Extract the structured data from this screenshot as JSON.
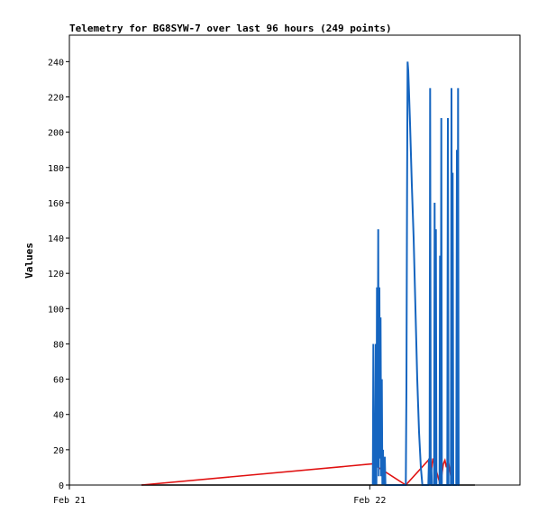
{
  "chart_data": {
    "type": "line",
    "title": "Telemetry for BG8SYW-7 over last 96 hours (249 points)",
    "xlabel": "",
    "ylabel": "Values",
    "ylim": [
      0,
      255
    ],
    "xlim": [
      0,
      1.5
    ],
    "x_ticks": [
      {
        "label": "Feb 21",
        "x": 0
      },
      {
        "label": "Feb 22",
        "x": 1
      }
    ],
    "y_ticks": [
      0,
      20,
      40,
      60,
      80,
      100,
      120,
      140,
      160,
      180,
      200,
      220,
      240
    ],
    "grid": false,
    "legend": "none",
    "colors": {
      "frame": "#000000",
      "background": "#ffffff"
    },
    "series": [
      {
        "color": "#000000",
        "points": [
          [
            0.24,
            0
          ],
          [
            1.35,
            0
          ]
        ]
      },
      {
        "color": "#e01010",
        "points": [
          [
            0.24,
            0
          ],
          [
            1.01,
            12
          ],
          [
            1.12,
            0
          ],
          [
            1.2,
            15
          ],
          [
            1.205,
            8
          ],
          [
            1.21,
            15
          ],
          [
            1.215,
            12
          ],
          [
            1.225,
            6
          ],
          [
            1.235,
            0
          ],
          [
            1.245,
            12
          ],
          [
            1.25,
            14
          ],
          [
            1.255,
            10
          ],
          [
            1.26,
            15
          ],
          [
            1.27,
            5
          ],
          [
            1.275,
            0
          ]
        ]
      },
      {
        "color": "#1565c0",
        "points": [
          [
            1.01,
            0
          ],
          [
            1.012,
            80
          ],
          [
            1.014,
            0
          ],
          [
            1.016,
            40
          ],
          [
            1.018,
            0
          ],
          [
            1.02,
            80
          ],
          [
            1.022,
            0
          ],
          [
            1.024,
            112
          ],
          [
            1.026,
            10
          ],
          [
            1.028,
            145
          ],
          [
            1.03,
            5
          ],
          [
            1.032,
            112
          ],
          [
            1.034,
            15
          ],
          [
            1.036,
            95
          ],
          [
            1.038,
            5
          ],
          [
            1.04,
            60
          ],
          [
            1.042,
            0
          ],
          [
            1.044,
            20
          ],
          [
            1.046,
            0
          ],
          [
            1.048,
            10
          ],
          [
            1.05,
            16
          ],
          [
            1.052,
            0
          ],
          [
            1.12,
            0
          ],
          [
            1.122,
            55
          ],
          [
            1.124,
            165
          ],
          [
            1.126,
            240
          ],
          [
            1.128,
            235
          ],
          [
            1.13,
            225
          ],
          [
            1.134,
            205
          ],
          [
            1.14,
            170
          ],
          [
            1.146,
            140
          ],
          [
            1.152,
            100
          ],
          [
            1.158,
            60
          ],
          [
            1.164,
            30
          ],
          [
            1.17,
            10
          ],
          [
            1.175,
            0
          ],
          [
            1.195,
            0
          ],
          [
            1.197,
            15
          ],
          [
            1.199,
            0
          ],
          [
            1.201,
            225
          ],
          [
            1.203,
            0
          ],
          [
            1.205,
            10
          ],
          [
            1.207,
            0
          ],
          [
            1.214,
            0
          ],
          [
            1.216,
            160
          ],
          [
            1.218,
            0
          ],
          [
            1.22,
            145
          ],
          [
            1.222,
            0
          ],
          [
            1.232,
            0
          ],
          [
            1.234,
            130
          ],
          [
            1.236,
            0
          ],
          [
            1.238,
            208
          ],
          [
            1.24,
            0
          ],
          [
            1.258,
            0
          ],
          [
            1.26,
            208
          ],
          [
            1.262,
            0
          ],
          [
            1.27,
            0
          ],
          [
            1.272,
            225
          ],
          [
            1.274,
            0
          ],
          [
            1.276,
            177
          ],
          [
            1.278,
            0
          ],
          [
            1.288,
            0
          ],
          [
            1.29,
            190
          ],
          [
            1.292,
            0
          ],
          [
            1.294,
            225
          ],
          [
            1.296,
            0
          ],
          [
            1.298,
            0
          ]
        ]
      }
    ]
  }
}
